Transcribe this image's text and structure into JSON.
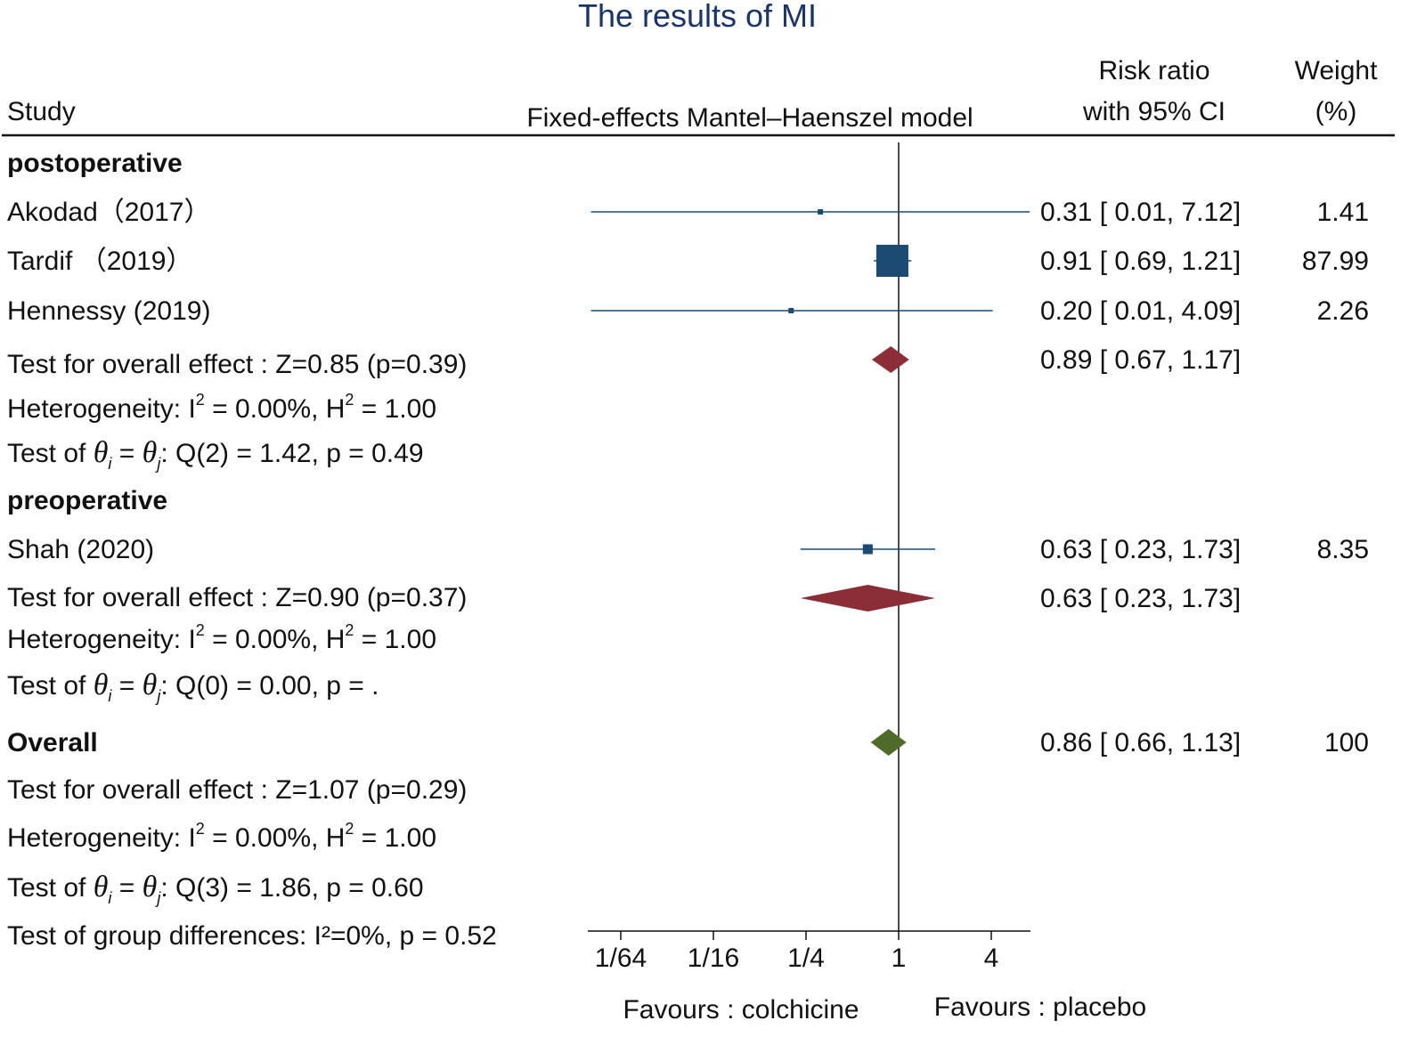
{
  "colors": {
    "study": "#1b4a72",
    "subgroup_diamond": "#8b2e37",
    "overall_diamond": "#4f6b2a",
    "title": "#1b3566"
  },
  "chart_data": {
    "type": "forest",
    "title": "The results of MI",
    "header": {
      "study": "Study",
      "model": "Fixed-effects Mantel–Haenszel model",
      "rr_line1": "Risk ratio",
      "rr_line2": "with 95% CI",
      "weight_line1": "Weight",
      "weight_line2": "(%)"
    },
    "x_scale": "log2",
    "xlim": [
      0.01,
      7.12
    ],
    "ticks": [
      {
        "value": 0.015625,
        "label": "1/64"
      },
      {
        "value": 0.0625,
        "label": "1/16"
      },
      {
        "value": 0.25,
        "label": "1/4"
      },
      {
        "value": 1,
        "label": "1"
      },
      {
        "value": 4,
        "label": "4"
      }
    ],
    "null_line": 1,
    "favours_left": "Favours : colchicine",
    "favours_right": "Favours : placebo",
    "rows": [
      {
        "kind": "group",
        "label": "postoperative"
      },
      {
        "kind": "study",
        "label": "Akodad（2017）",
        "rr": 0.31,
        "lo": 0.01,
        "hi": 7.12,
        "ci_text": "0.31 [ 0.01,  7.12]",
        "weight": 1.41,
        "weight_text": "1.41"
      },
      {
        "kind": "study",
        "label": "Tardif  （2019）",
        "rr": 0.91,
        "lo": 0.69,
        "hi": 1.21,
        "ci_text": "0.91 [ 0.69,  1.21]",
        "weight": 87.99,
        "weight_text": "87.99"
      },
      {
        "kind": "study",
        "label": "Hennessy (2019)",
        "rr": 0.2,
        "lo": 0.01,
        "hi": 4.09,
        "ci_text": "0.20 [ 0.01,  4.09]",
        "weight": 2.26,
        "weight_text": "2.26"
      },
      {
        "kind": "subtotal",
        "label": "Test for overall effect : Z=0.85 (p=0.39)",
        "rr": 0.89,
        "lo": 0.67,
        "hi": 1.17,
        "ci_text": "0.89 [ 0.67,  1.17]"
      },
      {
        "kind": "het",
        "prefix": "Heterogeneity: I",
        "mid": " = 0.00%, H",
        "suffix": " = 1.00",
        "sup": "2"
      },
      {
        "kind": "qtest",
        "prefix": "Test of ",
        "theta": "θ",
        "i": "i",
        "eq": " = ",
        "j": "j",
        "rest": ": Q(2) = 1.42, p = 0.49"
      },
      {
        "kind": "group",
        "label": "preoperative"
      },
      {
        "kind": "study",
        "label": "Shah (2020)",
        "rr": 0.63,
        "lo": 0.23,
        "hi": 1.73,
        "ci_text": "0.63 [ 0.23,  1.73]",
        "weight": 8.35,
        "weight_text": "8.35"
      },
      {
        "kind": "subtotal",
        "label": "Test for overall effect : Z=0.90 (p=0.37)",
        "rr": 0.63,
        "lo": 0.23,
        "hi": 1.73,
        "ci_text": "0.63 [ 0.23,  1.73]"
      },
      {
        "kind": "het",
        "prefix": "Heterogeneity: I",
        "mid": " = 0.00%, H",
        "suffix": " = 1.00",
        "sup": "2"
      },
      {
        "kind": "qtest",
        "prefix": "Test of ",
        "theta": "θ",
        "i": "i",
        "eq": " = ",
        "j": "j",
        "rest": ": Q(0) = 0.00, p = ."
      },
      {
        "kind": "overall",
        "label": "Overall",
        "rr": 0.86,
        "lo": 0.66,
        "hi": 1.13,
        "ci_text": "0.86 [ 0.66,  1.13]",
        "weight_text": "100"
      },
      {
        "kind": "text",
        "label": "Test for overall effect : Z=1.07 (p=0.29)"
      },
      {
        "kind": "het",
        "prefix": "Heterogeneity: I",
        "mid": " = 0.00%, H",
        "suffix": " = 1.00",
        "sup": "2"
      },
      {
        "kind": "qtest",
        "prefix": "Test of ",
        "theta": "θ",
        "i": "i",
        "eq": " = ",
        "j": "j",
        "rest": ": Q(3) = 1.86, p = 0.60"
      },
      {
        "kind": "text",
        "label": "Test of group differences: I²=0%, p = 0.52"
      }
    ]
  }
}
